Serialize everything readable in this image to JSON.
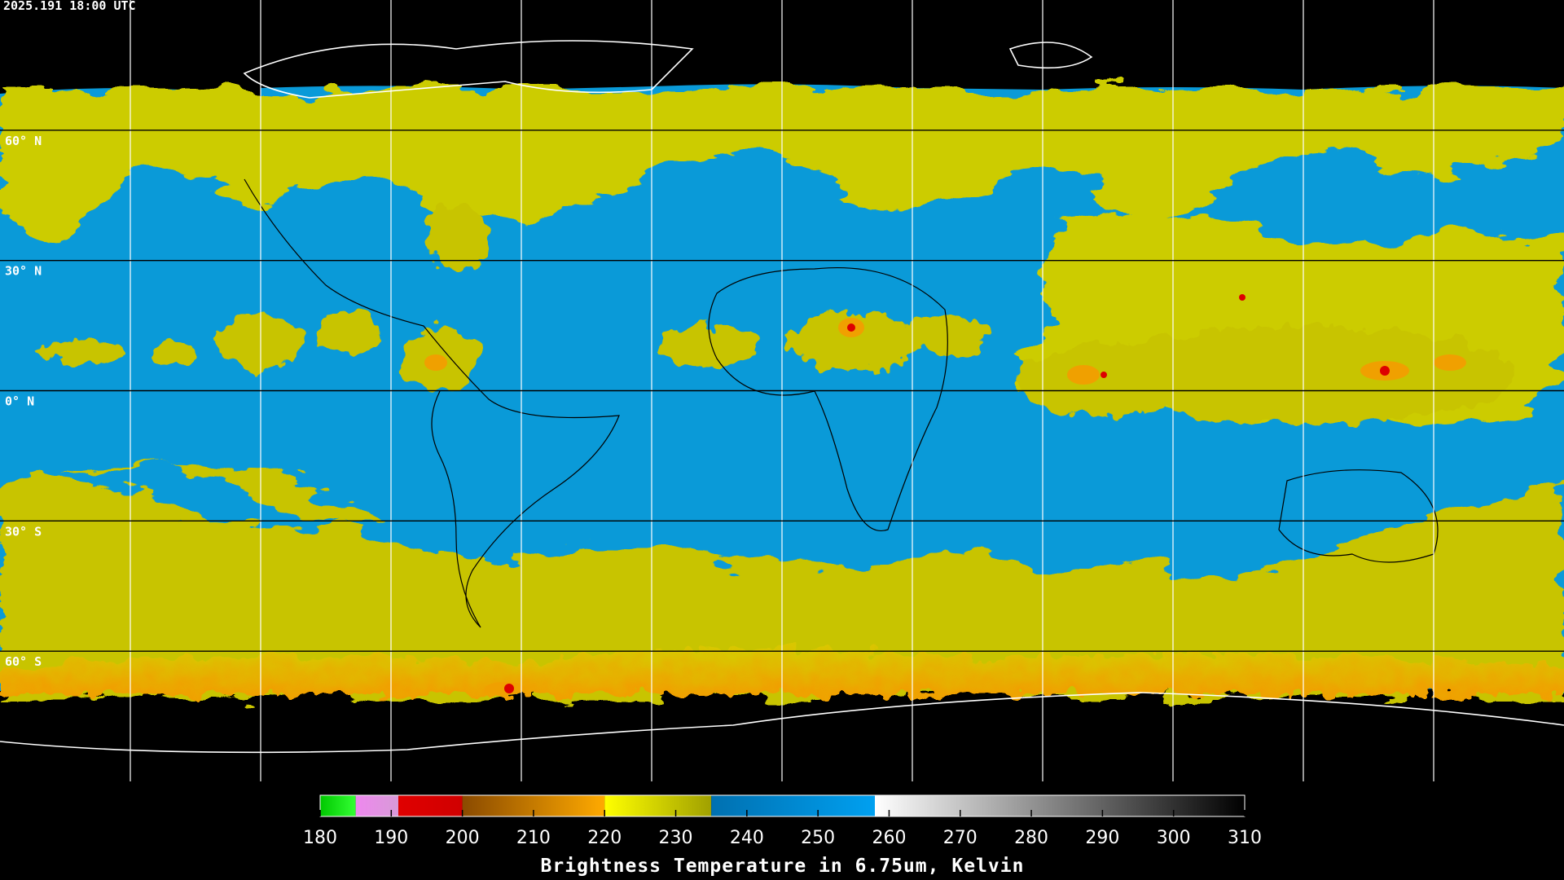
{
  "timestamp": "2025.191 18:00 UTC",
  "latitudes": [
    {
      "value": 60,
      "label": "60° N"
    },
    {
      "value": 30,
      "label": "30° N"
    },
    {
      "value": 0,
      "label": "0° N"
    },
    {
      "value": -30,
      "label": "30° S"
    },
    {
      "value": -60,
      "label": "60° S"
    }
  ],
  "colorbar": {
    "title": "Brightness Temperature in 6.75um, Kelvin",
    "range": [
      180,
      310
    ],
    "ticks": [
      180,
      190,
      200,
      210,
      220,
      230,
      240,
      250,
      260,
      270,
      280,
      290,
      300,
      310
    ],
    "segments": [
      {
        "from": 180,
        "to": 185,
        "colors": [
          "#00c800",
          "#33ff33"
        ]
      },
      {
        "from": 185,
        "to": 191,
        "colors": [
          "#ee88ee",
          "#d89ad8"
        ]
      },
      {
        "from": 191,
        "to": 200,
        "colors": [
          "#e00000",
          "#d00000"
        ]
      },
      {
        "from": 200,
        "to": 220,
        "colors": [
          "#8a4a00",
          "#ffaa00"
        ]
      },
      {
        "from": 220,
        "to": 235,
        "colors": [
          "#ffff00",
          "#a0a000"
        ]
      },
      {
        "from": 235,
        "to": 258,
        "colors": [
          "#0070b0",
          "#00a0f0"
        ]
      },
      {
        "from": 258,
        "to": 310,
        "colors": [
          "#ffffff",
          "#000000"
        ]
      }
    ]
  }
}
